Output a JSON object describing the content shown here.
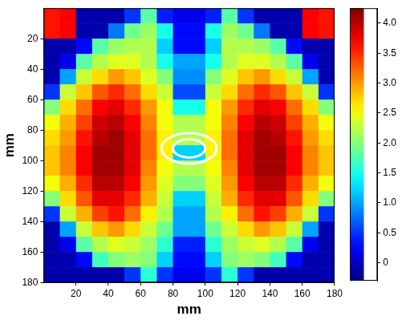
{
  "chart_data": {
    "type": "heatmap",
    "x_label": "mm",
    "y_label": "mm",
    "xlim": [
      0,
      180
    ],
    "ylim": [
      180,
      0
    ],
    "xticks": [
      20,
      40,
      60,
      80,
      100,
      120,
      140,
      160,
      180
    ],
    "yticks": [
      20,
      40,
      60,
      80,
      100,
      120,
      140,
      160,
      180
    ],
    "x": [
      5,
      15,
      25,
      35,
      45,
      55,
      65,
      75,
      85,
      95,
      105,
      115,
      125,
      135,
      145,
      155,
      165,
      175
    ],
    "y": [
      5,
      15,
      25,
      35,
      45,
      55,
      65,
      75,
      85,
      95,
      105,
      115,
      125,
      135,
      145,
      155,
      165,
      175
    ],
    "cells": [
      [
        3.6,
        3.7,
        -0.1,
        -0.1,
        -0.1,
        0.5,
        1.8,
        0.4,
        0.2,
        0.2,
        0.4,
        1.8,
        0.5,
        -0.1,
        -0.1,
        -0.1,
        3.7,
        3.6
      ],
      [
        3.6,
        3.7,
        -0.1,
        -0.1,
        0.8,
        1.9,
        2.1,
        1.5,
        0.3,
        0.3,
        1.5,
        2.1,
        1.9,
        0.8,
        -0.1,
        -0.1,
        3.7,
        3.6
      ],
      [
        -0.1,
        -0.1,
        0.3,
        1.8,
        2.1,
        2.2,
        2.2,
        1.2,
        0.3,
        0.3,
        1.2,
        2.2,
        2.2,
        2.1,
        1.8,
        0.3,
        -0.1,
        -0.1
      ],
      [
        -0.1,
        0.2,
        1.8,
        2.2,
        2.4,
        2.4,
        2.2,
        1.5,
        1.0,
        1.0,
        1.5,
        2.2,
        2.4,
        2.4,
        2.2,
        1.8,
        0.2,
        -0.1
      ],
      [
        -0.1,
        1.0,
        2.3,
        2.7,
        3.0,
        2.8,
        2.4,
        2.0,
        0.9,
        0.9,
        2.0,
        2.4,
        2.8,
        3.0,
        2.7,
        2.3,
        1.0,
        -0.1
      ],
      [
        0.5,
        2.3,
        2.8,
        3.3,
        3.5,
        3.2,
        2.7,
        2.3,
        0.6,
        0.6,
        2.3,
        2.7,
        3.2,
        3.5,
        3.3,
        2.8,
        2.3,
        0.5
      ],
      [
        2.0,
        2.7,
        3.2,
        3.7,
        3.8,
        3.5,
        3.0,
        2.5,
        1.5,
        1.5,
        2.5,
        3.0,
        3.5,
        3.8,
        3.7,
        3.2,
        2.7,
        2.0
      ],
      [
        2.5,
        2.9,
        3.4,
        3.9,
        4.0,
        3.7,
        3.1,
        2.5,
        2.2,
        2.2,
        2.5,
        3.1,
        3.7,
        4.0,
        3.9,
        3.4,
        2.9,
        2.5
      ],
      [
        2.7,
        3.0,
        3.6,
        4.0,
        4.1,
        3.8,
        3.2,
        2.6,
        2.2,
        2.2,
        2.6,
        3.2,
        3.8,
        4.1,
        4.0,
        3.6,
        3.0,
        2.7
      ],
      [
        2.8,
        3.1,
        3.7,
        4.1,
        4.1,
        3.8,
        3.2,
        2.6,
        1.2,
        1.2,
        2.6,
        3.2,
        3.8,
        4.1,
        4.1,
        3.7,
        3.1,
        2.8
      ],
      [
        2.8,
        3.1,
        3.7,
        4.1,
        4.1,
        3.8,
        3.1,
        2.5,
        2.2,
        2.2,
        2.5,
        3.1,
        3.8,
        4.1,
        4.1,
        3.7,
        3.1,
        2.8
      ],
      [
        2.5,
        2.9,
        3.5,
        4.0,
        4.0,
        3.7,
        3.0,
        2.4,
        2.0,
        2.0,
        2.4,
        3.0,
        3.7,
        4.0,
        4.0,
        3.5,
        2.9,
        2.5
      ],
      [
        2.0,
        2.7,
        3.3,
        3.8,
        3.8,
        3.5,
        2.9,
        2.3,
        1.2,
        1.2,
        2.3,
        2.9,
        3.5,
        3.8,
        3.8,
        3.3,
        2.7,
        2.0
      ],
      [
        0.5,
        2.3,
        2.9,
        3.4,
        3.6,
        3.2,
        2.6,
        2.2,
        1.0,
        1.0,
        2.2,
        2.6,
        3.2,
        3.6,
        3.4,
        2.9,
        2.3,
        0.5
      ],
      [
        -0.1,
        1.0,
        2.3,
        2.8,
        3.0,
        2.7,
        2.3,
        1.9,
        1.0,
        1.0,
        1.9,
        2.3,
        2.7,
        3.0,
        2.8,
        2.3,
        1.0,
        -0.1
      ],
      [
        -0.1,
        0.2,
        1.8,
        2.2,
        2.4,
        2.3,
        2.1,
        1.6,
        0.4,
        0.4,
        1.6,
        2.1,
        2.3,
        2.4,
        2.2,
        1.8,
        0.2,
        -0.1
      ],
      [
        -0.1,
        -0.1,
        0.3,
        1.7,
        2.0,
        2.1,
        2.0,
        1.2,
        0.3,
        0.3,
        1.2,
        2.0,
        2.1,
        2.0,
        1.7,
        0.3,
        -0.1,
        -0.1
      ],
      [
        -0.1,
        -0.1,
        -0.1,
        -0.1,
        -0.1,
        0.5,
        1.6,
        0.5,
        0.2,
        0.2,
        0.5,
        1.6,
        0.5,
        -0.1,
        -0.1,
        -0.1,
        -0.1,
        -0.1
      ]
    ],
    "contours": [
      {
        "center": [
          90,
          92
        ],
        "radii": [
          17,
          10
        ]
      },
      {
        "center": [
          90,
          92
        ],
        "radii": [
          10,
          6
        ]
      }
    ],
    "colorbar": {
      "range": [
        -0.3,
        4.25
      ],
      "ticks": [
        0,
        0.5,
        1,
        1.5,
        2,
        2.5,
        3,
        3.5,
        4
      ]
    }
  }
}
